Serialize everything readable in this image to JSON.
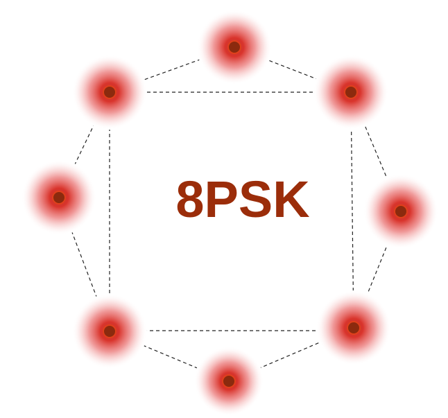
{
  "title": "8PSK"
}
